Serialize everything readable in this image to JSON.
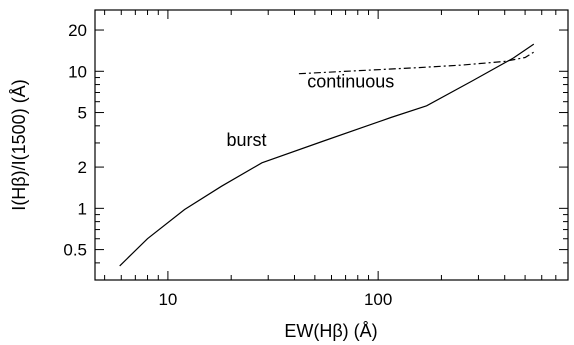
{
  "chart_data": {
    "type": "line",
    "xlabel": "EW(Hβ) (Å)",
    "ylabel": "I(Hβ)/I(1500) (Å)",
    "xscale": "log",
    "yscale": "log",
    "xlim": [
      4.5,
      800
    ],
    "ylim": [
      0.3,
      28
    ],
    "xticks_major": [
      {
        "value": 10,
        "label": "10"
      },
      {
        "value": 100,
        "label": "100"
      }
    ],
    "yticks_major": [
      {
        "value": 0.5,
        "label": "0.5"
      },
      {
        "value": 1,
        "label": "1"
      },
      {
        "value": 2,
        "label": "2"
      },
      {
        "value": 5,
        "label": "5"
      },
      {
        "value": 10,
        "label": "10"
      },
      {
        "value": 20,
        "label": "20"
      }
    ],
    "grid": false,
    "series": [
      {
        "style": "solid",
        "x": [
          5.9,
          8.0,
          12.0,
          18.0,
          28.0,
          55.0,
          115.0,
          170.0,
          280.0,
          440.0,
          550.0
        ],
        "y": [
          0.38,
          0.6,
          0.98,
          1.45,
          2.15,
          3.1,
          4.6,
          5.6,
          8.5,
          12.5,
          15.8
        ]
      },
      {
        "style": "dashdot",
        "x": [
          42.0,
          80.0,
          150.0,
          250.0,
          400.0,
          500.0,
          550.0
        ],
        "y": [
          9.6,
          10.1,
          10.6,
          11.1,
          11.8,
          12.6,
          13.8
        ]
      }
    ],
    "annotations": [
      {
        "text": "burst",
        "x": 19.0,
        "y": 2.85
      },
      {
        "text": "continuous",
        "x": 46.0,
        "y": 7.6
      }
    ]
  }
}
